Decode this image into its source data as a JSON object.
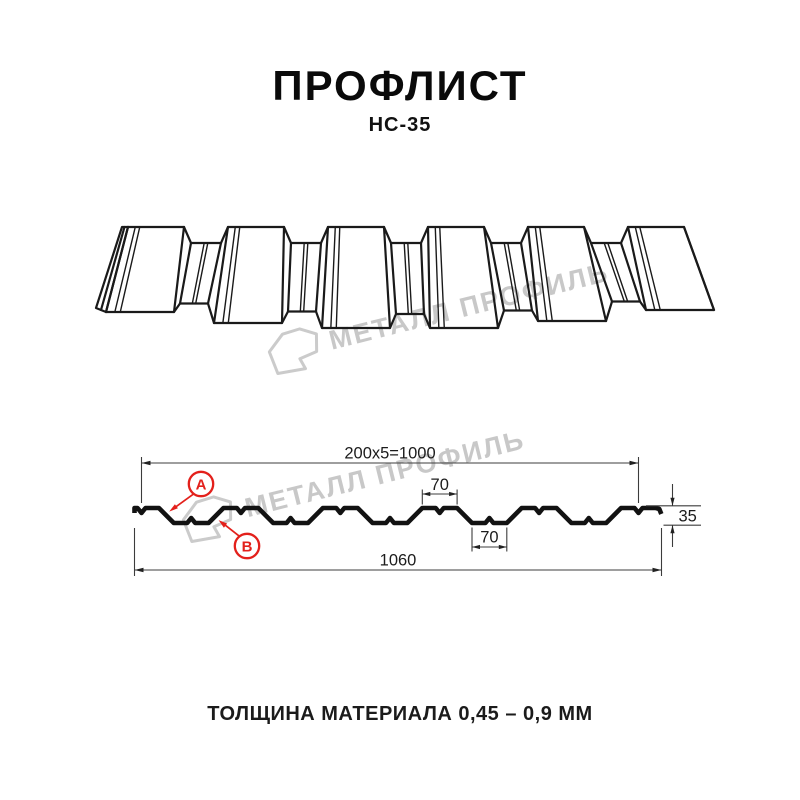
{
  "header": {
    "title": "ПРОФЛИСТ",
    "subtitle": "НС-35"
  },
  "watermark": {
    "brand": "МЕТАЛЛ ПРОФИЛЬ"
  },
  "drawing": {
    "dimensions": {
      "useful_width": "200x5=1000",
      "crest_top_width": "70",
      "valley_bottom_width": "70",
      "profile_height": "35",
      "overall_width": "1060"
    },
    "callouts": {
      "a": "A",
      "b": "B"
    }
  },
  "footer": {
    "thickness_note": "ТОЛЩИНА МАТЕРИАЛА 0,45 – 0,9 ММ"
  },
  "colors": {
    "accent_red": "#e3201b",
    "line": "#1a1a1a",
    "watermark": "#c8c8c8"
  }
}
